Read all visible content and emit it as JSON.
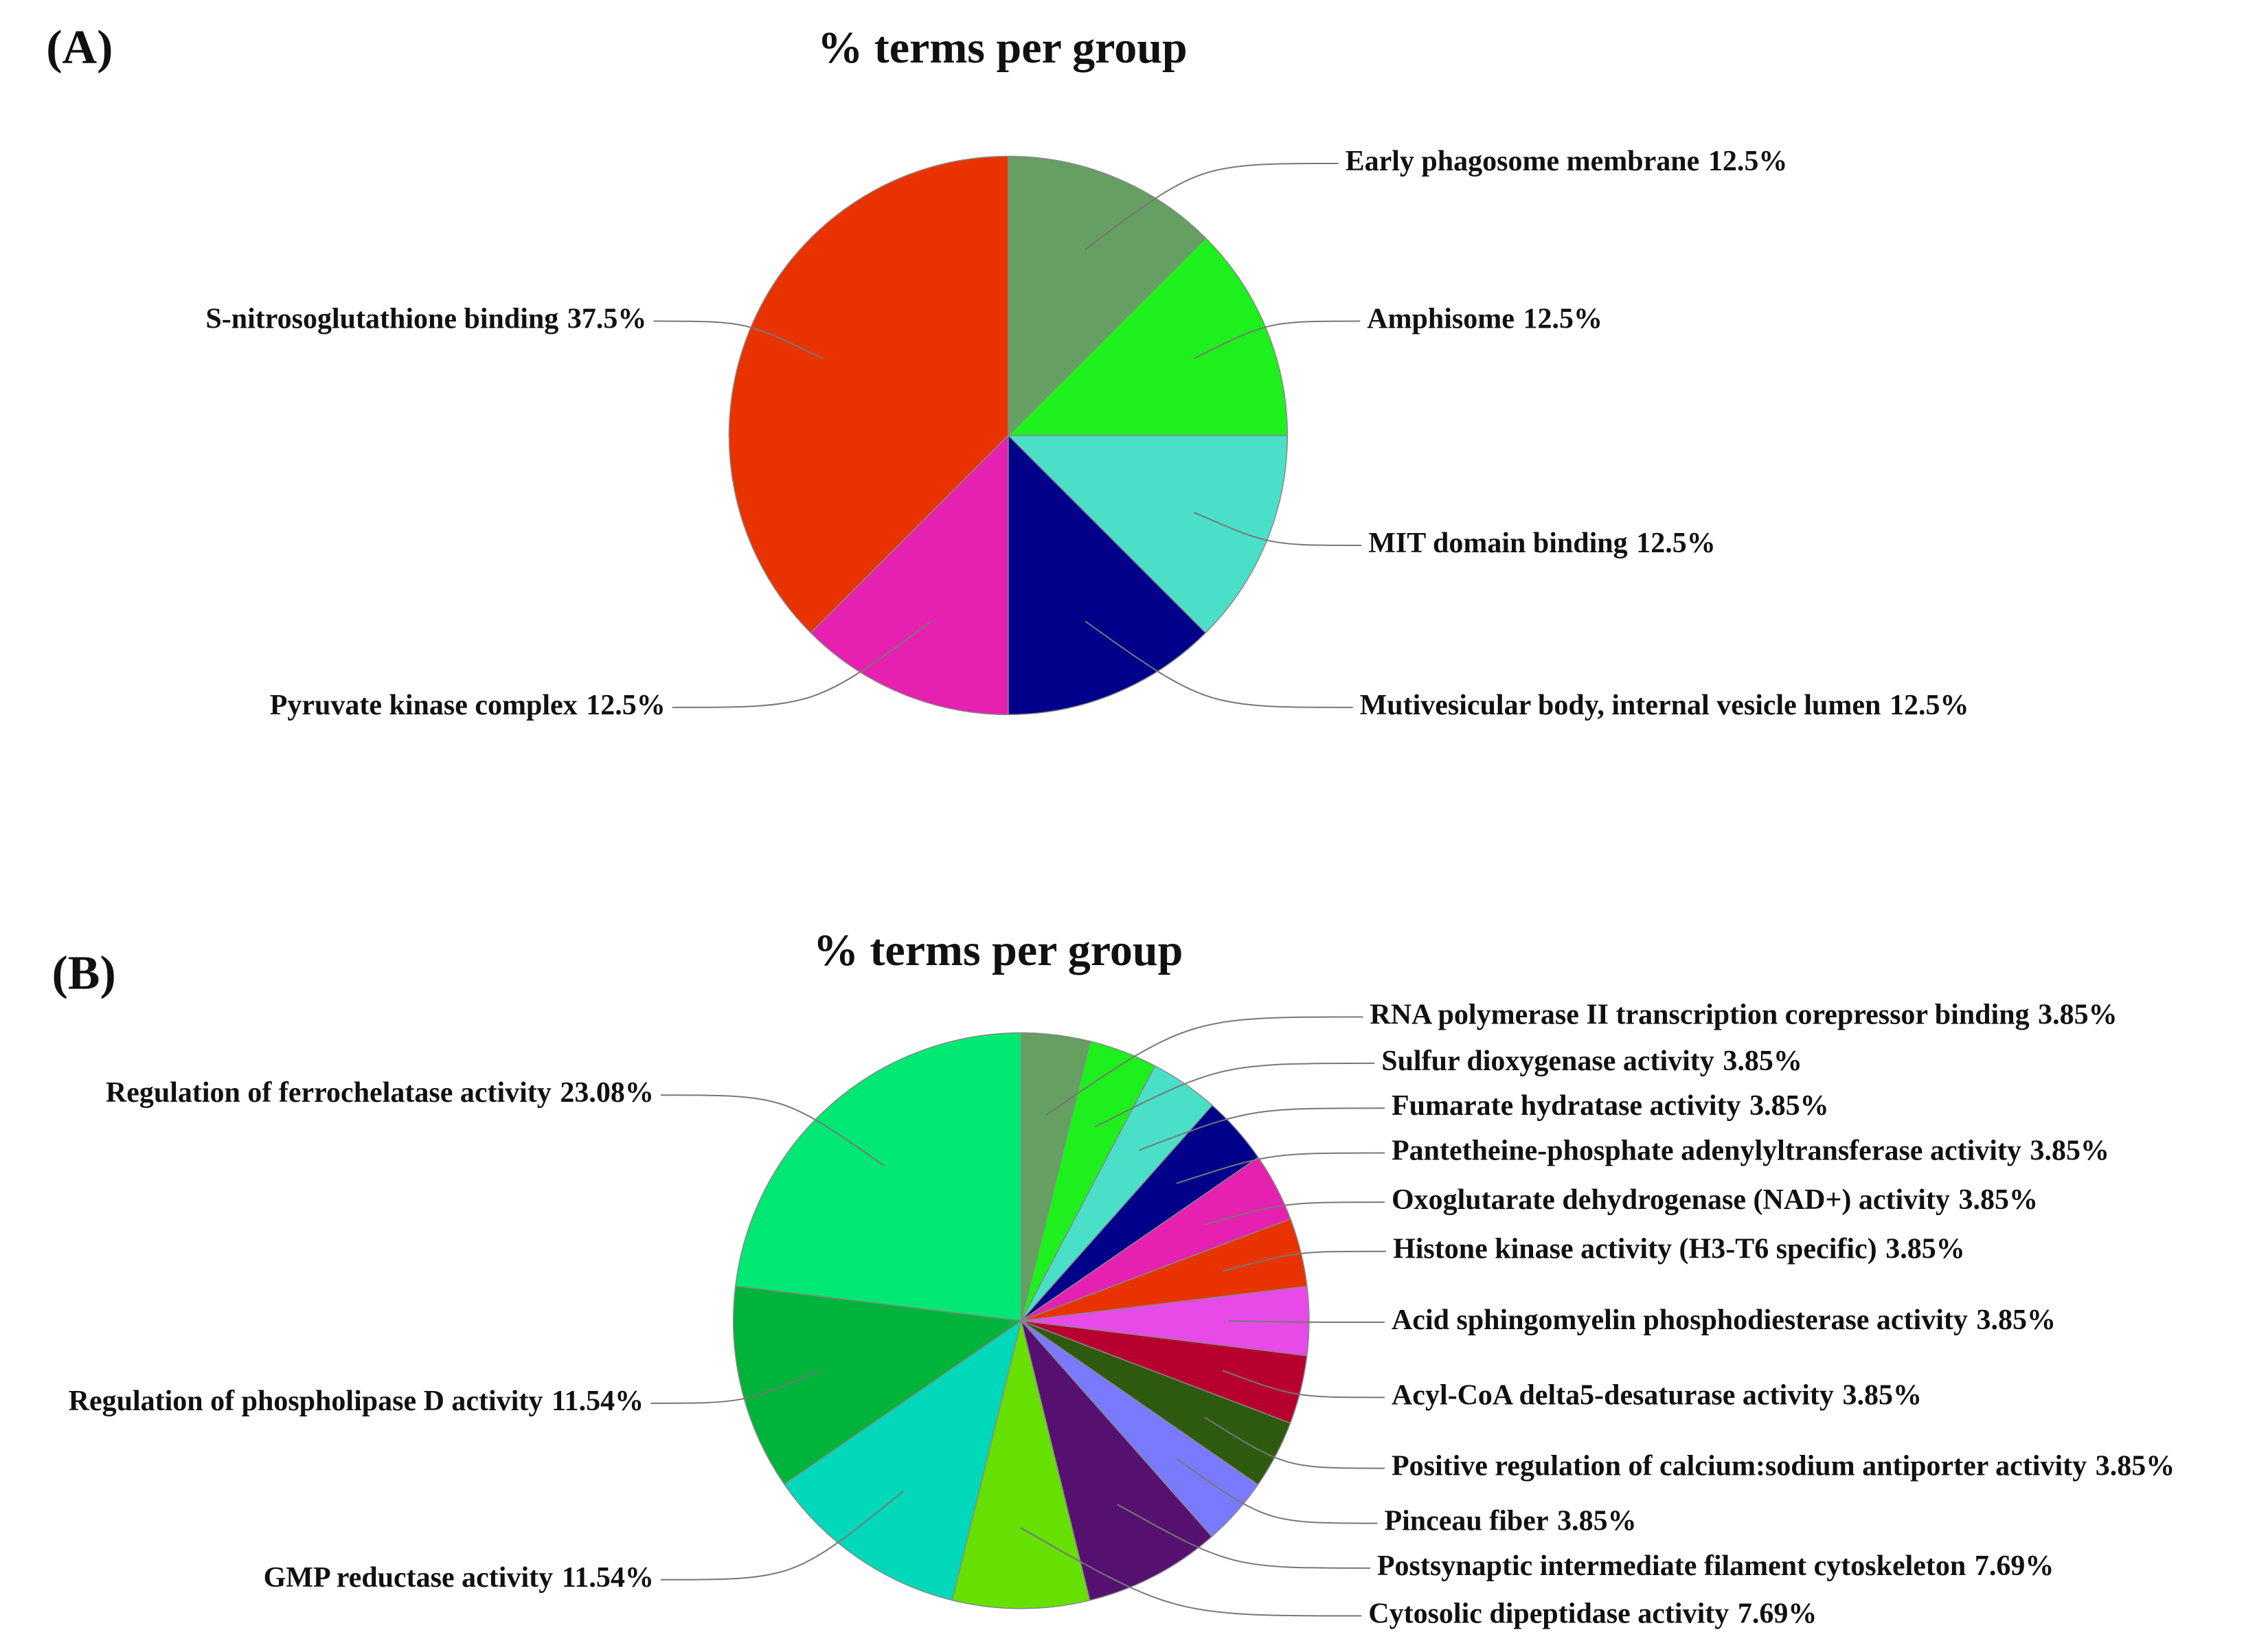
{
  "chart_data": [
    {
      "type": "pie",
      "panel_label": "(A)",
      "title": "% terms per group",
      "categories": [
        "Early phagosome membrane",
        "Amphisome",
        "MIT domain binding",
        "Mutivesicular body, internal vesicle lumen",
        "Pyruvate kinase complex",
        "S-nitrosoglutathione binding"
      ],
      "values": [
        12.5,
        12.5,
        12.5,
        12.5,
        12.5,
        37.5
      ],
      "value_labels": [
        "12.5%",
        "12.5%",
        "12.5%",
        "12.5%",
        "12.5%",
        "37.5%"
      ],
      "colors": [
        "#659f61",
        "#1df01d",
        "#4ae0c8",
        "#00008b",
        "#e620b0",
        "#e83300"
      ]
    },
    {
      "type": "pie",
      "panel_label": "(B)",
      "title": "% terms per group",
      "categories": [
        "RNA polymerase II transcription corepressor binding",
        "Sulfur dioxygenase activity",
        "Fumarate hydratase activity",
        "Pantetheine-phosphate adenylyltransferase activity",
        "Oxoglutarate dehydrogenase (NAD+) activity",
        "Histone kinase activity (H3-T6 specific)",
        "Acid sphingomyelin phosphodiesterase activity",
        "Acyl-CoA delta5-desaturase activity",
        "Positive regulation of calcium:sodium antiporter activity",
        "Pinceau fiber",
        "Postsynaptic intermediate filament cytoskeleton",
        "Cytosolic dipeptidase activity",
        "GMP reductase activity",
        "Regulation of phospholipase D activity",
        "Regulation of ferrochelatase activity"
      ],
      "values": [
        3.85,
        3.85,
        3.85,
        3.85,
        3.85,
        3.85,
        3.85,
        3.85,
        3.85,
        3.85,
        7.69,
        7.69,
        11.54,
        11.54,
        23.08
      ],
      "value_labels": [
        "3.85%",
        "3.85%",
        "3.85%",
        "3.85%",
        "3.85%",
        "3.85%",
        "3.85%",
        "3.85%",
        "3.85%",
        "3.85%",
        "7.69%",
        "7.69%",
        "11.54%",
        "11.54%",
        "23.08%"
      ],
      "colors": [
        "#659f61",
        "#1df01d",
        "#4ae0c8",
        "#00008b",
        "#e620b0",
        "#e83300",
        "#e84ae8",
        "#b8002e",
        "#2e5a10",
        "#7a7aff",
        "#551070",
        "#66e000",
        "#00d9b9",
        "#00b33a",
        "#00e874"
      ]
    }
  ]
}
